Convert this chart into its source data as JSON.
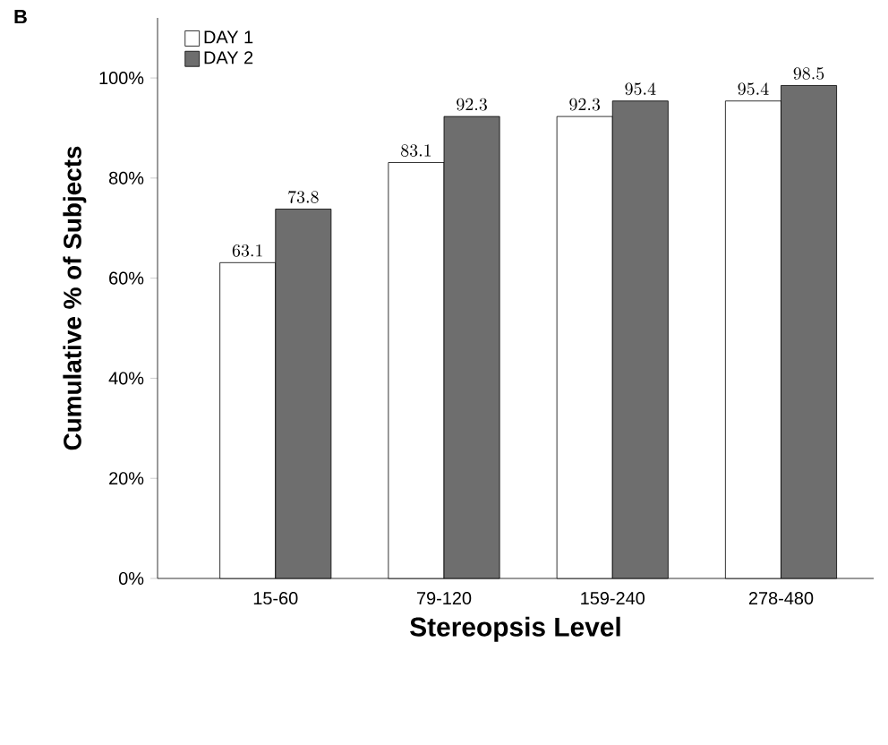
{
  "chart_data": {
    "type": "bar",
    "annotations": [
      "B"
    ],
    "xlabel": "Stereopsis Level",
    "ylabel": "Cumulative % of Subjects",
    "categories": [
      "15-60",
      "79-120",
      "159-240",
      "278-480"
    ],
    "series": [
      {
        "name": "DAY 1",
        "color": "#ffffff",
        "values": [
          63.1,
          83.1,
          92.3,
          95.4
        ]
      },
      {
        "name": "DAY 2",
        "color": "#6e6e6e",
        "values": [
          73.8,
          92.3,
          95.4,
          98.5
        ]
      }
    ],
    "ylim": [
      0,
      112
    ],
    "yticks": [
      {
        "value": 0,
        "label": "0%"
      },
      {
        "value": 20,
        "label": "20%"
      },
      {
        "value": 40,
        "label": "40%"
      },
      {
        "value": 60,
        "label": "60%"
      },
      {
        "value": 80,
        "label": "80%"
      },
      {
        "value": 100,
        "label": "100%"
      }
    ],
    "data_labels": true,
    "legend": "top left",
    "grid": false
  }
}
